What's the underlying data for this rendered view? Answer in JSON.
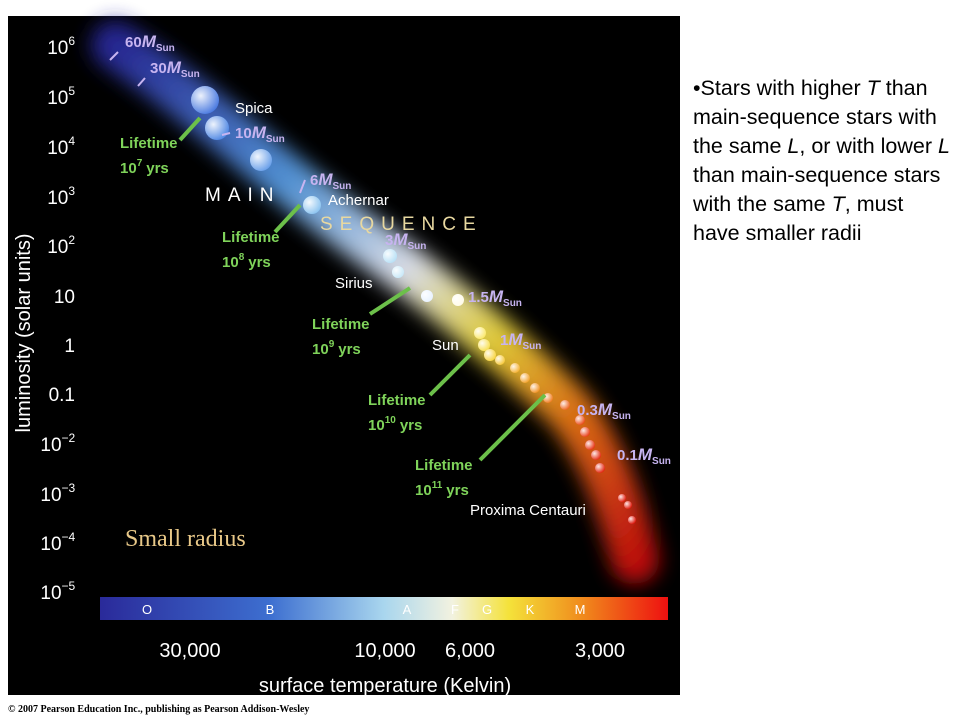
{
  "figure": {
    "y_axis": {
      "title": "luminosity (solar units)",
      "ticks": [
        {
          "base": "10",
          "exp": "6"
        },
        {
          "base": "10",
          "exp": "5"
        },
        {
          "base": "10",
          "exp": "4"
        },
        {
          "base": "10",
          "exp": "3"
        },
        {
          "base": "10",
          "exp": "2"
        },
        {
          "base": "10"
        },
        {
          "base": "1"
        },
        {
          "base": "0.1"
        },
        {
          "base": "10",
          "exp": "−2"
        },
        {
          "base": "10",
          "exp": "−3"
        },
        {
          "base": "10",
          "exp": "−4"
        },
        {
          "base": "10",
          "exp": "−5"
        }
      ]
    },
    "x_axis": {
      "title": "surface temperature (Kelvin)",
      "ticks": [
        "30,000",
        "10,000",
        "6,000",
        "3,000"
      ]
    },
    "spectral_classes": [
      "O",
      "B",
      "A",
      "F",
      "G",
      "K",
      "M"
    ],
    "masses": [
      {
        "number": "60",
        "symbol": "M",
        "sub": "Sun"
      },
      {
        "number": "30",
        "symbol": "M",
        "sub": "Sun"
      },
      {
        "number": "10",
        "symbol": "M",
        "sub": "Sun"
      },
      {
        "number": "6",
        "symbol": "M",
        "sub": "Sun"
      },
      {
        "number": "3",
        "symbol": "M",
        "sub": "Sun"
      },
      {
        "number": "1.5",
        "symbol": "M",
        "sub": "Sun"
      },
      {
        "number": "1",
        "symbol": "M",
        "sub": "Sun"
      },
      {
        "number": "0.3",
        "symbol": "M",
        "sub": "Sun"
      },
      {
        "number": "0.1",
        "symbol": "M",
        "sub": "Sun"
      }
    ],
    "lifetimes": [
      {
        "word": "Lifetime",
        "base": "10",
        "exp": "7",
        "unit": "yrs"
      },
      {
        "word": "Lifetime",
        "base": "10",
        "exp": "8",
        "unit": "yrs"
      },
      {
        "word": "Lifetime",
        "base": "10",
        "exp": "9",
        "unit": "yrs"
      },
      {
        "word": "Lifetime",
        "base": "10",
        "exp": "10",
        "unit": "yrs"
      },
      {
        "word": "Lifetime",
        "base": "10",
        "exp": "11",
        "unit": "yrs"
      }
    ],
    "star_names": [
      "Spica",
      "Achernar",
      "Sirius",
      "Sun",
      "Proxima Centauri"
    ],
    "band_words": [
      "MAIN",
      "SEQUENCE"
    ],
    "annotation": "Small radius",
    "copyright": "© 2007 Pearson Education Inc., publishing as Pearson Addison-Wesley"
  },
  "bullet": {
    "segments": [
      "•Stars with higher ",
      "T",
      " than main-sequence stars with the same ",
      "L",
      ", or with lower ",
      "L",
      " than main-sequence stars with the same ",
      "T",
      ", must have smaller radii"
    ]
  }
}
